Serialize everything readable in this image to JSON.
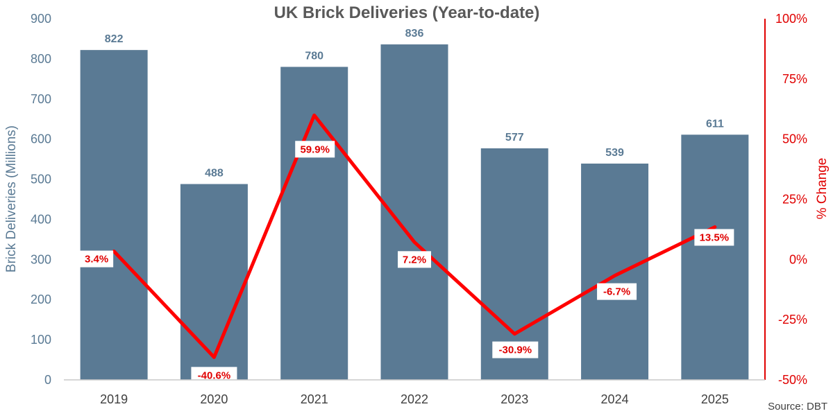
{
  "chart_data": {
    "type": "bar",
    "title": "UK Brick Deliveries (Year-to-date)",
    "categories": [
      "2019",
      "2020",
      "2021",
      "2022",
      "2023",
      "2024",
      "2025"
    ],
    "series": [
      {
        "type": "bar",
        "axis": "left",
        "values": [
          822,
          488,
          780,
          836,
          577,
          539,
          611
        ],
        "labels": [
          "822",
          "488",
          "780",
          "836",
          "577",
          "539",
          "611"
        ],
        "color": "#5a7a94"
      },
      {
        "type": "line",
        "axis": "right",
        "values": [
          3.4,
          -40.6,
          59.9,
          7.2,
          -30.9,
          -6.7,
          13.5
        ],
        "labels": [
          "3.4%",
          "-40.6%",
          "59.9%",
          "7.2%",
          "-30.9%",
          "-6.7%",
          "13.5%"
        ],
        "color": "#ff0000"
      }
    ],
    "ylabel": "Brick Deliveries (Millions)",
    "y2label": "% Change",
    "ylim": [
      0,
      900
    ],
    "y2lim": [
      -50,
      100
    ],
    "yticks": [
      "0",
      "100",
      "200",
      "300",
      "400",
      "500",
      "600",
      "700",
      "800",
      "900"
    ],
    "y2ticks": [
      "-50%",
      "-25%",
      "0%",
      "25%",
      "50%",
      "75%",
      "100%"
    ],
    "grid": false,
    "legend": "none",
    "source": "Source: DBT"
  }
}
